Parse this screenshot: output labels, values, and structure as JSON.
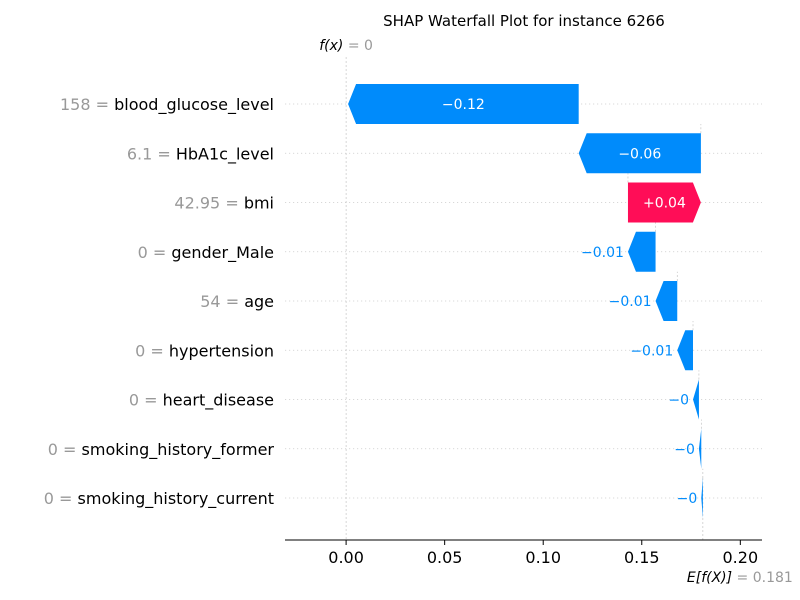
{
  "chart_data": {
    "type": "waterfall",
    "title": "SHAP Waterfall Plot for instance 6266",
    "base_value": 0.181,
    "final_value": 0,
    "fx_label_prefix": "f(x)",
    "fx_value_text": "0",
    "ex_label_prefix": "E[f(X)]",
    "ex_value_text": "0.181",
    "xlim": [
      -0.031,
      0.211
    ],
    "xticks": [
      0.0,
      0.05,
      0.1,
      0.15,
      0.2
    ],
    "xtick_labels": [
      "0.00",
      "0.05",
      "0.10",
      "0.15",
      "0.20"
    ],
    "colors": {
      "positive": "#ff0d57",
      "negative": "#008bfb",
      "neutral_text": "#999999"
    },
    "features": [
      {
        "value": "158",
        "name": "blood_glucose_level",
        "shap": -0.117,
        "label": "−0.12"
      },
      {
        "value": "6.1",
        "name": "HbA1c_level",
        "shap": -0.062,
        "label": "−0.06"
      },
      {
        "value": "42.95",
        "name": "bmi",
        "shap": 0.037,
        "label": "+0.04"
      },
      {
        "value": "0",
        "name": "gender_Male",
        "shap": -0.014,
        "label": "−0.01"
      },
      {
        "value": "54",
        "name": "age",
        "shap": -0.011,
        "label": "−0.01"
      },
      {
        "value": "0",
        "name": "hypertension",
        "shap": -0.008,
        "label": "−0.01"
      },
      {
        "value": "0",
        "name": "heart_disease",
        "shap": -0.003,
        "label": "−0"
      },
      {
        "value": "0",
        "name": "smoking_history_former",
        "shap": -0.0012,
        "label": "−0"
      },
      {
        "value": "0",
        "name": "smoking_history_current",
        "shap": -0.0008,
        "label": "−0"
      }
    ]
  }
}
